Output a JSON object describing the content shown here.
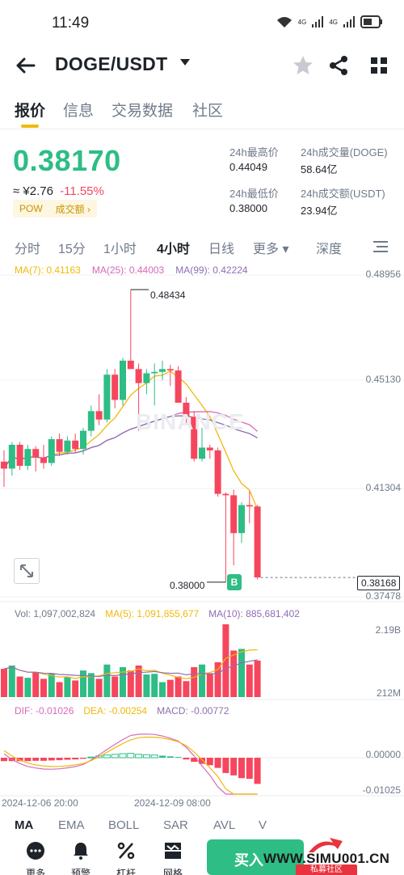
{
  "status": {
    "time": "11:49",
    "net1": "4G",
    "net2": "4G"
  },
  "header": {
    "pair": "DOGE/USDT"
  },
  "tabs": [
    {
      "label": "报价"
    },
    {
      "label": "信息"
    },
    {
      "label": "交易数据"
    },
    {
      "label": "社区"
    }
  ],
  "price": {
    "last": "0.38170",
    "fiat": "≈ ¥2.76",
    "change": "-11.55%",
    "tag1": "POW",
    "tag2": "成交额",
    "tag_arrow": "›"
  },
  "stats": {
    "high_label": "24h最高价",
    "high": "0.44049",
    "vol_label": "24h成交量(DOGE)",
    "vol": "58.64亿",
    "low_label": "24h最低价",
    "low": "0.38000",
    "amt_label": "24h成交额(USDT)",
    "amt": "23.94亿"
  },
  "intervals": [
    {
      "label": "分时"
    },
    {
      "label": "15分"
    },
    {
      "label": "1小时"
    },
    {
      "label": "4小时"
    },
    {
      "label": "日线"
    },
    {
      "label": "更多 ▾"
    },
    {
      "label": "深度"
    }
  ],
  "ma": {
    "ma7": "MA(7): 0.41163",
    "ma25": "MA(25): 0.44003",
    "ma99": "MA(99): 0.42224"
  },
  "price_axis": [
    "0.48956",
    "0.45130",
    "0.41304",
    "0.37478"
  ],
  "markers": {
    "high": "0.48434",
    "low": "0.38000",
    "current": "0.38168",
    "buy": "B"
  },
  "watermark": "BINANCE",
  "volume": {
    "vol": "Vol: 1,097,002,824",
    "ma5": "MA(5): 1,091,855,677",
    "ma10": "MA(10): 885,681,402",
    "axis_top": "2.19B",
    "axis_bottom": "212M"
  },
  "macd": {
    "dif": "DIF: -0.01026",
    "dea": "DEA: -0.00254",
    "macd": "MACD: -0.00772",
    "axis_top": "0.00000",
    "axis_bottom": "-0.01025"
  },
  "time_axis": [
    "2024-12-06 20:00",
    "2024-12-09 08:00"
  ],
  "indicators": [
    {
      "label": "MA"
    },
    {
      "label": "EMA"
    },
    {
      "label": "BOLL"
    },
    {
      "label": "SAR"
    },
    {
      "label": "AVL"
    },
    {
      "label": "V"
    }
  ],
  "bottom": {
    "more": "更多",
    "alert": "预警",
    "leverage": "杠杆",
    "grid": "网格",
    "buy": "买入",
    "brand": "WWW.SIMU001.CN",
    "brand_sub": "私募社区"
  },
  "colors": {
    "up": "#2ebd85",
    "down": "#f6465d",
    "ma7": "#f0b90b",
    "ma25": "#d66bb8",
    "ma99": "#8e6fb0"
  },
  "chart_data": {
    "type": "candlestick",
    "interval": "4小时",
    "candles": [
      {
        "o": 0.423,
        "h": 0.427,
        "l": 0.414,
        "c": 0.4205
      },
      {
        "o": 0.4205,
        "h": 0.43,
        "l": 0.418,
        "c": 0.429
      },
      {
        "o": 0.429,
        "h": 0.43,
        "l": 0.42,
        "c": 0.4215
      },
      {
        "o": 0.4215,
        "h": 0.429,
        "l": 0.42,
        "c": 0.4275
      },
      {
        "o": 0.4275,
        "h": 0.4285,
        "l": 0.4195,
        "c": 0.4245
      },
      {
        "o": 0.4245,
        "h": 0.429,
        "l": 0.4205,
        "c": 0.4225
      },
      {
        "o": 0.4225,
        "h": 0.432,
        "l": 0.4215,
        "c": 0.431
      },
      {
        "o": 0.431,
        "h": 0.433,
        "l": 0.425,
        "c": 0.4265
      },
      {
        "o": 0.4265,
        "h": 0.432,
        "l": 0.4255,
        "c": 0.4305
      },
      {
        "o": 0.4305,
        "h": 0.433,
        "l": 0.426,
        "c": 0.4275
      },
      {
        "o": 0.4275,
        "h": 0.435,
        "l": 0.4255,
        "c": 0.434
      },
      {
        "o": 0.434,
        "h": 0.443,
        "l": 0.432,
        "c": 0.441
      },
      {
        "o": 0.441,
        "h": 0.447,
        "l": 0.436,
        "c": 0.438
      },
      {
        "o": 0.438,
        "h": 0.456,
        "l": 0.437,
        "c": 0.454
      },
      {
        "o": 0.454,
        "h": 0.456,
        "l": 0.442,
        "c": 0.445
      },
      {
        "o": 0.445,
        "h": 0.46,
        "l": 0.443,
        "c": 0.459
      },
      {
        "o": 0.459,
        "h": 0.4843,
        "l": 0.456,
        "c": 0.456
      },
      {
        "o": 0.456,
        "h": 0.458,
        "l": 0.434,
        "c": 0.451
      },
      {
        "o": 0.451,
        "h": 0.456,
        "l": 0.447,
        "c": 0.4545
      },
      {
        "o": 0.4545,
        "h": 0.458,
        "l": 0.443,
        "c": 0.455
      },
      {
        "o": 0.455,
        "h": 0.459,
        "l": 0.452,
        "c": 0.456
      },
      {
        "o": 0.456,
        "h": 0.4575,
        "l": 0.45,
        "c": 0.4555
      },
      {
        "o": 0.4555,
        "h": 0.457,
        "l": 0.444,
        "c": 0.444
      },
      {
        "o": 0.444,
        "h": 0.446,
        "l": 0.436,
        "c": 0.439
      },
      {
        "o": 0.439,
        "h": 0.441,
        "l": 0.423,
        "c": 0.424
      },
      {
        "o": 0.424,
        "h": 0.435,
        "l": 0.423,
        "c": 0.428
      },
      {
        "o": 0.428,
        "h": 0.429,
        "l": 0.424,
        "c": 0.427
      },
      {
        "o": 0.427,
        "h": 0.428,
        "l": 0.4105,
        "c": 0.4115
      },
      {
        "o": 0.4115,
        "h": 0.412,
        "l": 0.38,
        "c": 0.411
      },
      {
        "o": 0.411,
        "h": 0.413,
        "l": 0.386,
        "c": 0.3975
      },
      {
        "o": 0.3975,
        "h": 0.4085,
        "l": 0.394,
        "c": 0.4075
      },
      {
        "o": 0.4075,
        "h": 0.4125,
        "l": 0.401,
        "c": 0.407
      },
      {
        "o": 0.407,
        "h": 0.4075,
        "l": 0.381,
        "c": 0.3817
      }
    ],
    "volume": [
      0.85,
      0.95,
      0.62,
      0.58,
      0.75,
      0.55,
      0.7,
      0.45,
      0.6,
      0.5,
      0.8,
      0.72,
      0.55,
      0.98,
      0.62,
      0.9,
      0.8,
      0.95,
      0.68,
      0.7,
      0.45,
      0.52,
      0.62,
      0.48,
      0.9,
      0.98,
      0.72,
      1.05,
      2.19,
      1.4,
      1.45,
      0.98,
      1.1
    ],
    "macd_hist": [
      -0.001,
      -0.001,
      -0.001,
      -0.001,
      -0.0009,
      -0.0009,
      -0.0008,
      -0.0007,
      -0.0006,
      -0.0005,
      -0.0003,
      0.0002,
      0.0005,
      0.0008,
      0.001,
      0.0012,
      0.0013,
      0.001,
      0.0009,
      0.0008,
      0.0006,
      0.0004,
      0.0002,
      -0.0005,
      -0.0012,
      -0.0018,
      -0.0022,
      -0.003,
      -0.0045,
      -0.0052,
      -0.006,
      -0.0062,
      -0.0077
    ]
  }
}
